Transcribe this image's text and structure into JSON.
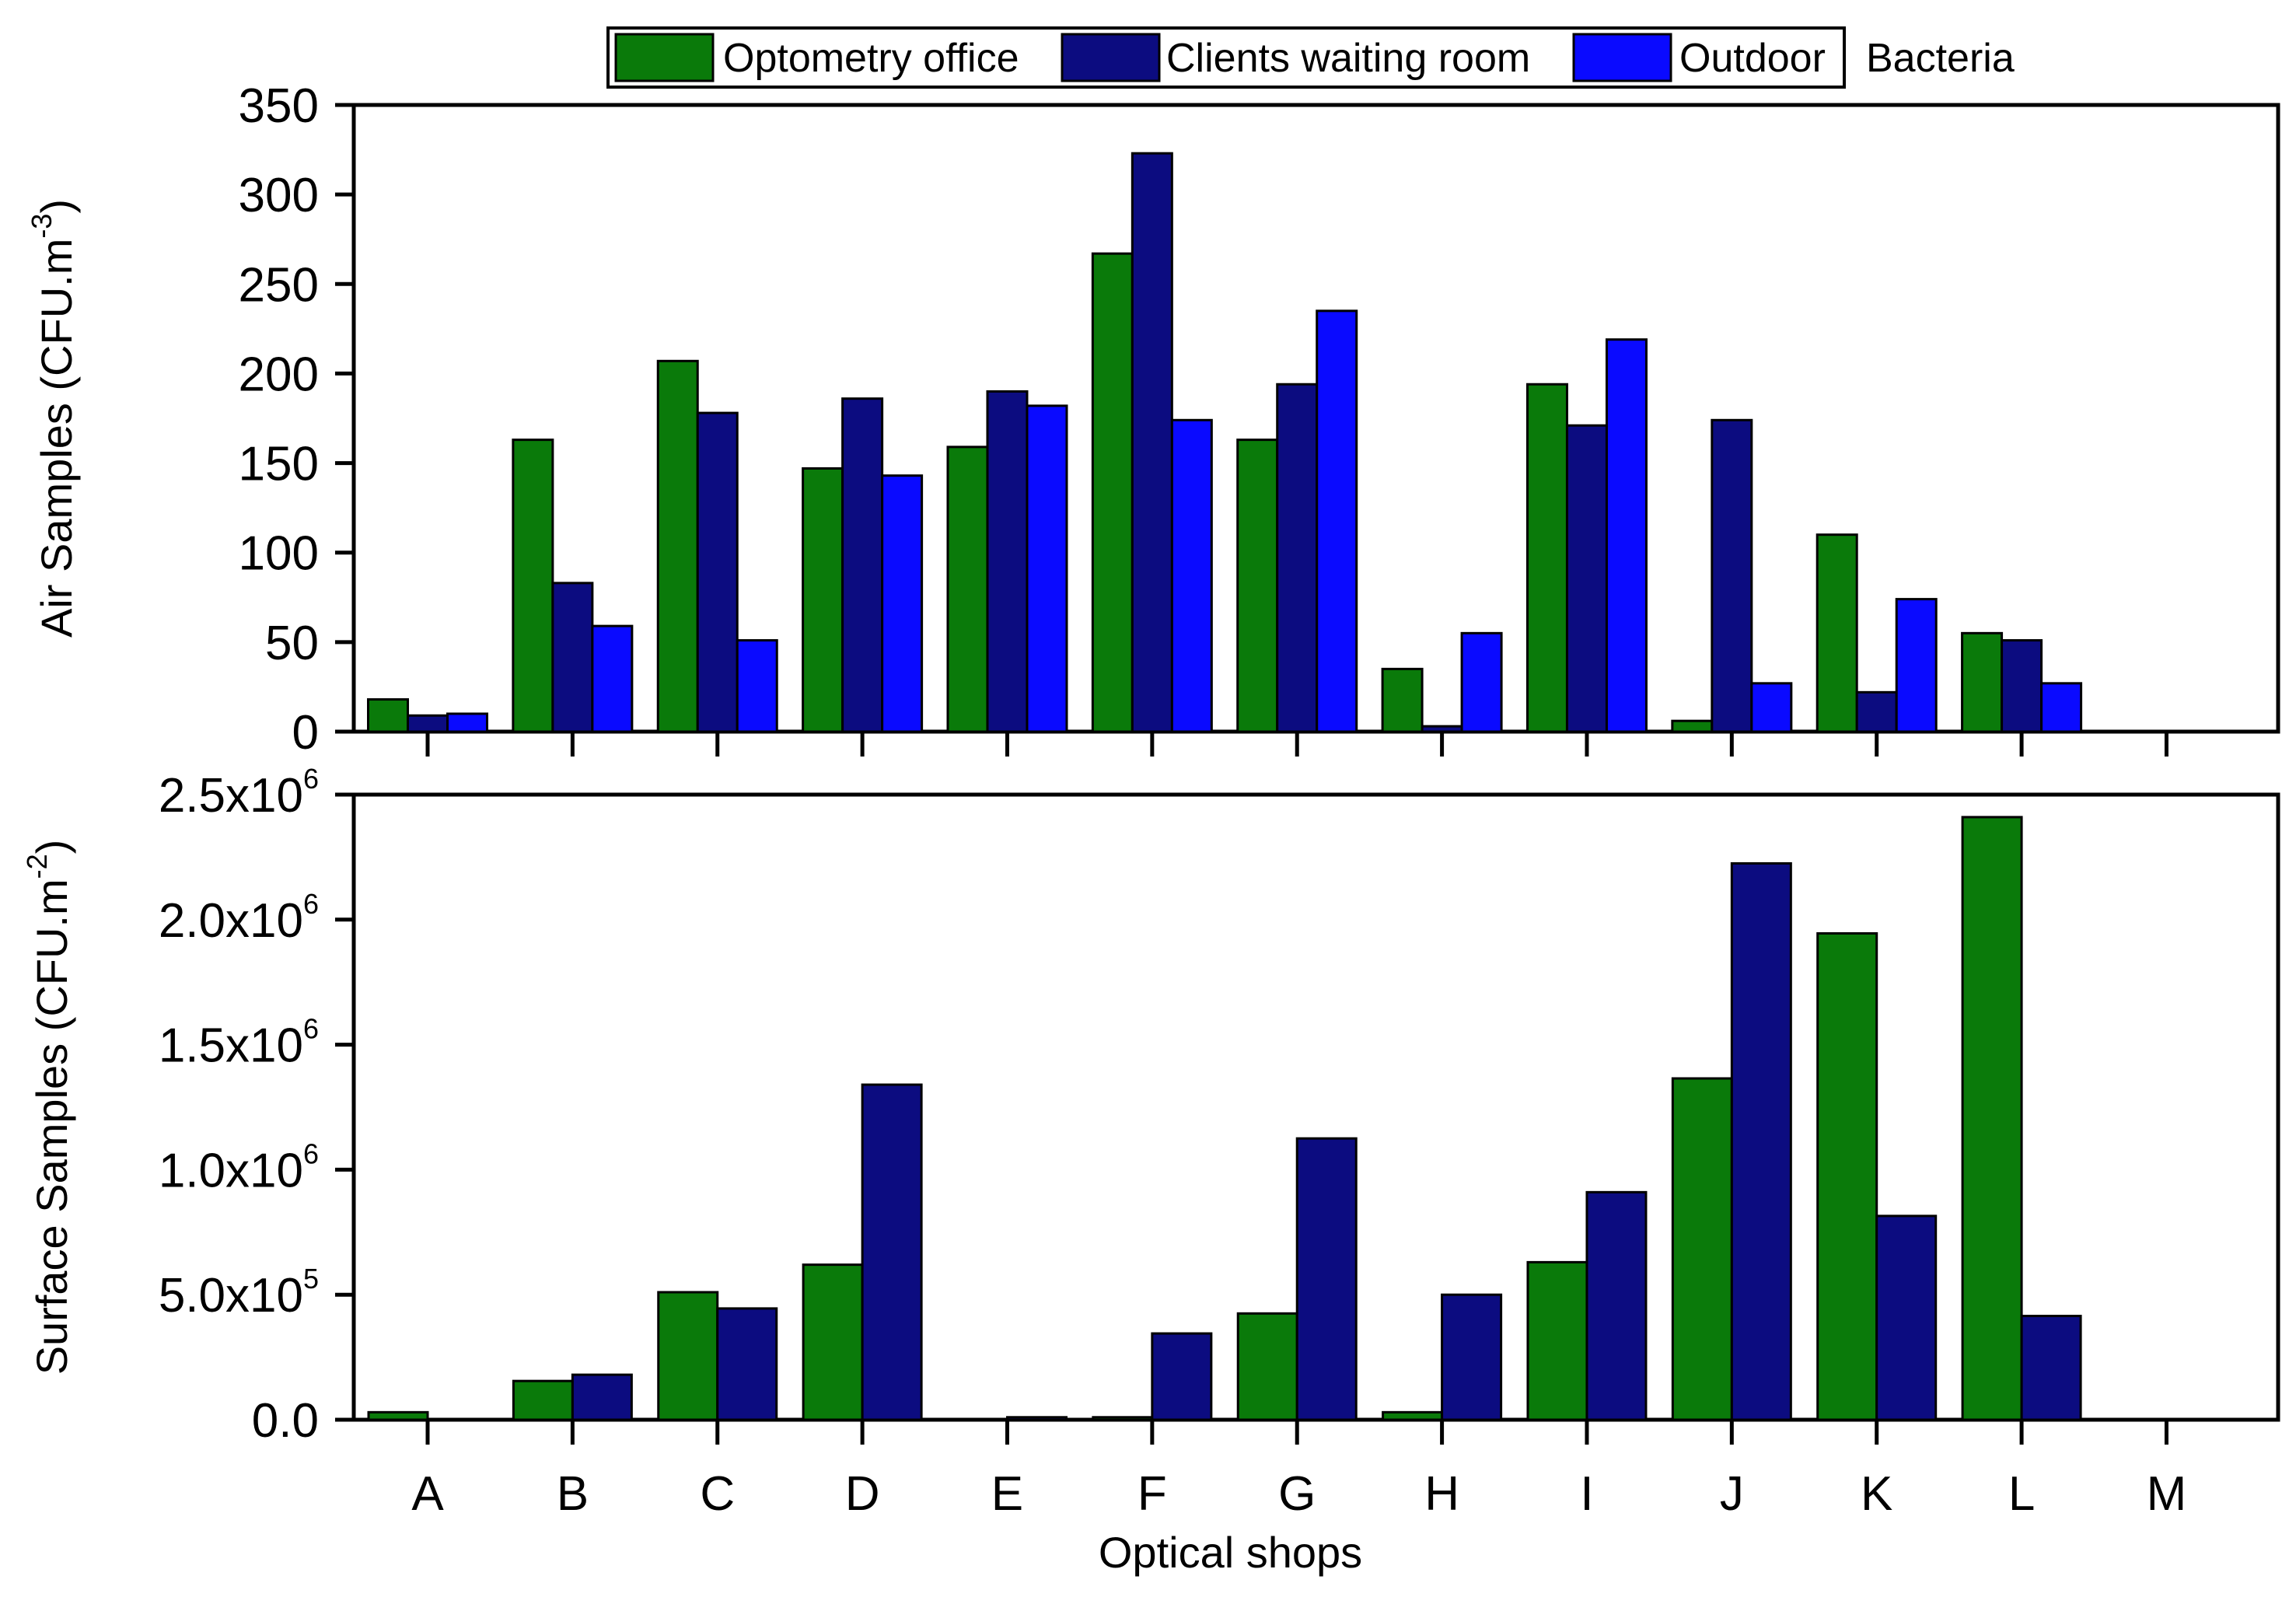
{
  "chart_data": [
    {
      "type": "bar",
      "panel": "air",
      "title": "Bacteria",
      "categories": [
        "A",
        "B",
        "C",
        "D",
        "E",
        "F",
        "G",
        "H",
        "I",
        "J",
        "K",
        "L",
        "M"
      ],
      "ylabel": "Air Samples (CFU.m",
      "ylabel_exp": "-3",
      "ylabel_close": ")",
      "ylim": [
        0,
        350
      ],
      "yticks": [
        0,
        50,
        100,
        150,
        200,
        250,
        300,
        350
      ],
      "ytick_labels": [
        "0",
        "50",
        "100",
        "150",
        "200",
        "250",
        "300",
        "350"
      ],
      "series": [
        {
          "name": "Optometry office",
          "color": "#0a7a0a",
          "values": [
            18,
            163,
            207,
            147,
            159,
            267,
            163,
            35,
            194,
            6,
            110,
            55,
            null
          ]
        },
        {
          "name": "Clients waiting room",
          "color": "#0c0c80",
          "values": [
            9,
            83,
            178,
            186,
            190,
            323,
            194,
            3,
            171,
            174,
            22,
            51,
            null
          ]
        },
        {
          "name": "Outdoor",
          "color": "#0a0aff",
          "values": [
            10,
            59,
            51,
            143,
            182,
            174,
            235,
            55,
            219,
            27,
            74,
            27,
            null
          ]
        }
      ]
    },
    {
      "type": "bar",
      "panel": "surface",
      "categories": [
        "A",
        "B",
        "C",
        "D",
        "E",
        "F",
        "G",
        "H",
        "I",
        "J",
        "K",
        "L",
        "M"
      ],
      "xlabel": "Optical shops",
      "ylabel": "Surface Samples (CFU.m",
      "ylabel_exp": "-2",
      "ylabel_close": ")",
      "ylim": [
        0,
        2500000
      ],
      "yticks": [
        0,
        500000,
        1000000,
        1500000,
        2000000,
        2500000
      ],
      "ytick_mantissa": [
        "0.0",
        "5.0x10",
        "1.0x10",
        "1.5x10",
        "2.0x10",
        "2.5x10"
      ],
      "ytick_exponent": [
        "",
        "5",
        "6",
        "6",
        "6",
        "6"
      ],
      "series": [
        {
          "name": "Optometry office",
          "color": "#0a7a0a",
          "values": [
            30000,
            155000,
            510000,
            620000,
            0,
            10000,
            425000,
            30000,
            630000,
            1365000,
            1945000,
            2410000,
            null
          ]
        },
        {
          "name": "Clients waiting room",
          "color": "#0c0c80",
          "values": [
            0,
            180000,
            445000,
            1340000,
            10000,
            345000,
            1125000,
            500000,
            910000,
            2225000,
            815000,
            415000,
            null
          ]
        }
      ]
    }
  ]
}
